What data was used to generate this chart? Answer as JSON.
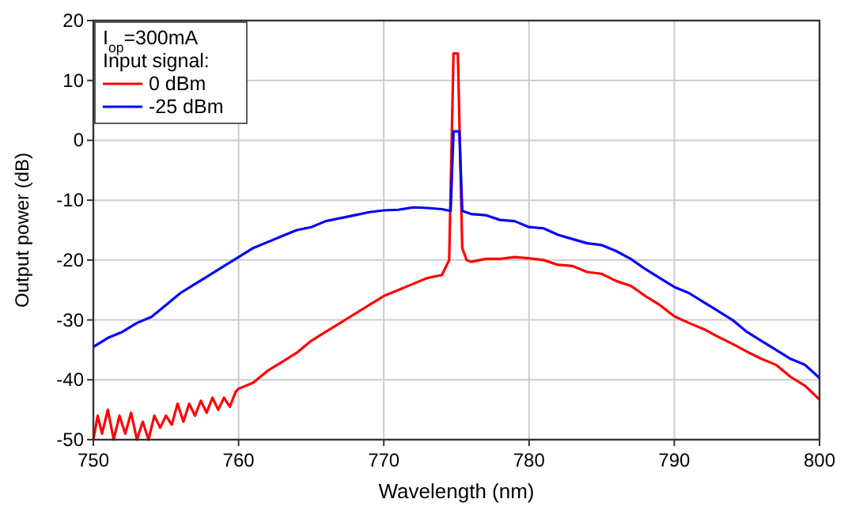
{
  "chart_data": {
    "type": "line",
    "xlabel": "Wavelength (nm)",
    "ylabel": "Output power (dB)",
    "xlim": [
      750,
      800
    ],
    "ylim": [
      -50,
      20
    ],
    "xticks": [
      750,
      760,
      770,
      780,
      790,
      800
    ],
    "yticks": [
      -50,
      -40,
      -30,
      -20,
      -10,
      0,
      10,
      20
    ],
    "grid": true,
    "legend": "top left",
    "legend_title": "Input signal:",
    "annotations": [
      "I$_{op}$=300mA"
    ],
    "line_style": "solid",
    "marker": "none",
    "series": [
      {
        "name": "0 dBm",
        "color": "#ff0000",
        "x": [
          750,
          750.3,
          750.6,
          751,
          751.4,
          751.8,
          752.2,
          752.6,
          753,
          753.4,
          753.8,
          754.2,
          754.6,
          755,
          755.4,
          755.8,
          756.2,
          756.6,
          757,
          757.4,
          757.8,
          758.2,
          758.6,
          759,
          759.4,
          759.8,
          760,
          761,
          762,
          763,
          764,
          765,
          766,
          767,
          768,
          769,
          770,
          771,
          772,
          773,
          774,
          774.5,
          774.8,
          775.1,
          775.4,
          775.7,
          776,
          777,
          778,
          779,
          780,
          781,
          782,
          783,
          784,
          785,
          786,
          787,
          788,
          789,
          790,
          791,
          792,
          793,
          794,
          795,
          796,
          797,
          798,
          799,
          800
        ],
        "values": [
          -50,
          -46,
          -49,
          -45,
          -50,
          -46,
          -49,
          -45.5,
          -50,
          -47,
          -50,
          -46,
          -48,
          -46,
          -47.5,
          -44,
          -47,
          -44,
          -46,
          -43.5,
          -45.5,
          -43,
          -45,
          -43,
          -44.5,
          -42,
          -41.5,
          -40.5,
          -38.5,
          -37,
          -35.5,
          -33.5,
          -32,
          -30.5,
          -29,
          -27.5,
          -26,
          -25,
          -24,
          -23,
          -22.5,
          -20,
          14.5,
          14.5,
          -18,
          -20,
          -20.3,
          -19.8,
          -19.8,
          -19.5,
          -19.7,
          -20,
          -20.8,
          -21,
          -22,
          -22.3,
          -23.5,
          -24.3,
          -26,
          -27.5,
          -29.4,
          -30.5,
          -31.5,
          -32.8,
          -34,
          -35.3,
          -36.5,
          -37.5,
          -39.5,
          -41,
          -43.3
        ]
      },
      {
        "name": "-25 dBm",
        "color": "#0000ff",
        "x": [
          750,
          751,
          752,
          753,
          754,
          755,
          756,
          757,
          758,
          759,
          760,
          761,
          762,
          763,
          764,
          765,
          766,
          767,
          768,
          769,
          770,
          771,
          772,
          773,
          774,
          774.6,
          774.8,
          775.2,
          775.4,
          776,
          777,
          778,
          779,
          780,
          781,
          782,
          783,
          784,
          785,
          786,
          787,
          788,
          789,
          790,
          791,
          792,
          793,
          794,
          795,
          796,
          797,
          798,
          799,
          800
        ],
        "values": [
          -34.5,
          -33,
          -32,
          -30.5,
          -29.5,
          -27.5,
          -25.5,
          -24,
          -22.5,
          -21,
          -19.5,
          -18,
          -17,
          -16,
          -15,
          -14.5,
          -13.5,
          -13,
          -12.5,
          -12,
          -11.7,
          -11.6,
          -11.2,
          -11.3,
          -11.5,
          -11.8,
          1.5,
          1.5,
          -11.8,
          -12.3,
          -12.5,
          -13.3,
          -13.5,
          -14.5,
          -14.7,
          -15.8,
          -16.5,
          -17.2,
          -17.5,
          -18.5,
          -19.8,
          -21.5,
          -23,
          -24.5,
          -25.5,
          -27,
          -28.5,
          -30,
          -32,
          -33.5,
          -35,
          -36.5,
          -37.5,
          -39.7
        ]
      }
    ]
  }
}
